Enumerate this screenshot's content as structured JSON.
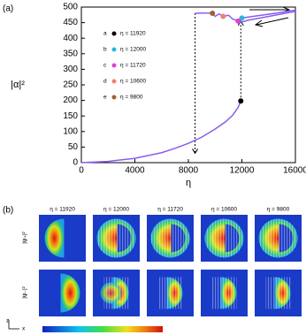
{
  "chart_data": {
    "type": "line",
    "panel_label": "(a)",
    "xlabel": "η",
    "ylabel": "|α|²",
    "xlim": [
      0,
      16000
    ],
    "ylim": [
      0,
      500
    ],
    "xticks": [
      0,
      4000,
      8000,
      12000,
      16000
    ],
    "yticks": [
      0,
      50,
      100,
      150,
      200,
      250,
      300,
      350,
      400,
      450,
      500
    ],
    "series": [
      {
        "color": "#8a5cf0",
        "x": [
          0,
          2000,
          4000,
          6000,
          7000,
          8000,
          9000,
          10000,
          10800,
          11300,
          11700,
          11920
        ],
        "y": [
          0,
          4,
          14,
          32,
          46,
          62,
          82,
          108,
          132,
          152,
          176,
          198
        ]
      },
      {
        "color": "#8a5cf0",
        "x": [
          8500,
          9200,
          9800,
          10000,
          10300,
          10600,
          11000,
          11300,
          11720,
          12000,
          12500,
          13500,
          14500,
          16000
        ],
        "y": [
          480,
          481,
          480,
          470,
          478,
          470,
          474,
          462,
          455,
          465,
          468,
          474,
          480,
          490
        ]
      },
      {
        "color": "#8a5cf0",
        "x": [
          11720,
          12000,
          12500,
          13500,
          14500,
          16000
        ],
        "y": [
          448,
          452,
          458,
          466,
          474,
          486
        ]
      }
    ],
    "points": [
      {
        "label": "a",
        "text": "η = 11920",
        "x": 11920,
        "y": 198,
        "color": "#000000"
      },
      {
        "label": "b",
        "text": "η = 12000",
        "x": 12000,
        "y": 465,
        "color": "#29b7e0"
      },
      {
        "label": "c",
        "text": "η = 11720",
        "x": 11720,
        "y": 455,
        "color": "#e040d0"
      },
      {
        "label": "d",
        "text": "η = 10600",
        "x": 10600,
        "y": 470,
        "color": "#f08070"
      },
      {
        "label": "e",
        "text": "η = 9800",
        "x": 9800,
        "y": 480,
        "color": "#a0622d"
      }
    ],
    "jumps": [
      {
        "x": 8500,
        "from": 480,
        "to": 30
      },
      {
        "x": 11920,
        "from": 198,
        "to": 455
      }
    ]
  },
  "panel_b": {
    "label": "(b)",
    "columns": [
      "η = 11920",
      "η = 12000",
      "η = 11720",
      "η = 10600",
      "η = 9800"
    ],
    "rows": [
      "|ψ₊|²",
      "|ψ₋|²"
    ],
    "axis_z": "z",
    "axis_x": "x"
  }
}
